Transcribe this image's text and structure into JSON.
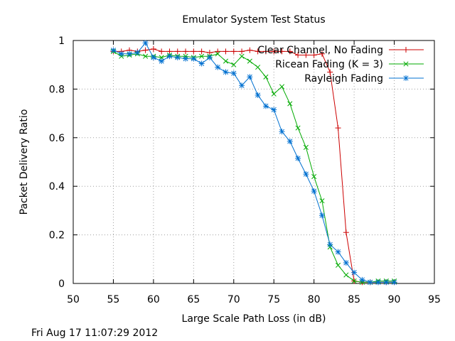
{
  "chart_data": {
    "type": "line",
    "title": "Emulator System Test Status",
    "xlabel": "Large Scale Path Loss (in dB)",
    "ylabel": "Packet Delivery Ratio",
    "xlim": [
      50,
      95
    ],
    "ylim": [
      0,
      1
    ],
    "xticks": [
      50,
      55,
      60,
      65,
      70,
      75,
      80,
      85,
      90,
      95
    ],
    "yticks": [
      0,
      0.2,
      0.4,
      0.6,
      0.8,
      1
    ],
    "ytick_labels": [
      "0",
      "0.2",
      "0.4",
      "0.6",
      "0.8",
      "1"
    ],
    "grid": true,
    "legend_position": "top-right",
    "timestamp": "Fri Aug 17 11:07:29 2012",
    "series": [
      {
        "name": "Clear Channel, No Fading",
        "color": "#cc0000",
        "marker": "plus",
        "x": [
          55,
          56,
          57,
          58,
          59,
          60,
          61,
          62,
          63,
          64,
          65,
          66,
          67,
          68,
          69,
          70,
          71,
          72,
          73,
          74,
          75,
          76,
          77,
          78,
          79,
          80,
          81,
          82,
          83,
          84,
          85,
          86,
          87,
          88,
          89,
          90
        ],
        "y": [
          0.955,
          0.955,
          0.96,
          0.955,
          0.96,
          0.965,
          0.955,
          0.955,
          0.955,
          0.955,
          0.955,
          0.955,
          0.95,
          0.955,
          0.955,
          0.955,
          0.955,
          0.96,
          0.955,
          0.955,
          0.955,
          0.955,
          0.955,
          0.94,
          0.94,
          0.94,
          0.945,
          0.87,
          0.64,
          0.21,
          0.01,
          0.005,
          0.005,
          0.005,
          0.005,
          0.005
        ]
      },
      {
        "name": "Ricean Fading (K = 3)",
        "color": "#00aa00",
        "marker": "cross",
        "x": [
          55,
          56,
          57,
          58,
          59,
          60,
          61,
          62,
          63,
          64,
          65,
          66,
          67,
          68,
          69,
          70,
          71,
          72,
          73,
          74,
          75,
          76,
          77,
          78,
          79,
          80,
          81,
          82,
          83,
          84,
          85,
          86,
          87,
          88,
          89,
          90
        ],
        "y": [
          0.955,
          0.935,
          0.94,
          0.945,
          0.935,
          0.935,
          0.93,
          0.94,
          0.935,
          0.935,
          0.93,
          0.935,
          0.935,
          0.945,
          0.915,
          0.9,
          0.935,
          0.915,
          0.89,
          0.85,
          0.78,
          0.81,
          0.74,
          0.64,
          0.56,
          0.44,
          0.34,
          0.15,
          0.075,
          0.035,
          0.01,
          0.005,
          0.005,
          0.01,
          0.01,
          0.01
        ]
      },
      {
        "name": "Rayleigh Fading",
        "color": "#0070d0",
        "marker": "star",
        "x": [
          55,
          56,
          57,
          58,
          59,
          60,
          61,
          62,
          63,
          64,
          65,
          66,
          67,
          68,
          69,
          70,
          71,
          72,
          73,
          74,
          75,
          76,
          77,
          78,
          79,
          80,
          81,
          82,
          83,
          84,
          85,
          86,
          87,
          88,
          89,
          90
        ],
        "y": [
          0.96,
          0.945,
          0.945,
          0.95,
          0.99,
          0.93,
          0.915,
          0.935,
          0.93,
          0.925,
          0.925,
          0.905,
          0.93,
          0.89,
          0.87,
          0.865,
          0.815,
          0.85,
          0.775,
          0.73,
          0.715,
          0.625,
          0.585,
          0.515,
          0.45,
          0.38,
          0.28,
          0.16,
          0.13,
          0.085,
          0.045,
          0.015,
          0.005,
          0.005,
          0.005,
          0.005
        ]
      }
    ]
  }
}
